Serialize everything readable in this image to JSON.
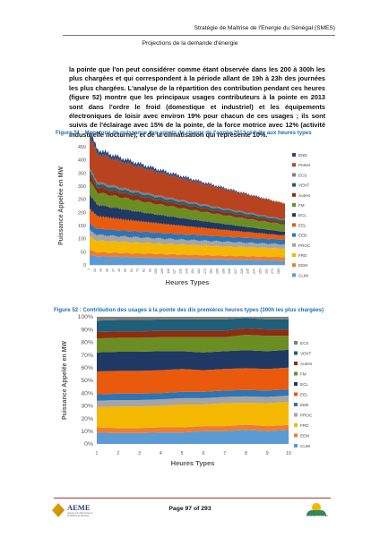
{
  "header": {
    "title": "Stratégie de Maîtrise de l'Energie du Sénégal (SMES)",
    "subtitle": "Projections de la demande d'énergie"
  },
  "paragraph": "la pointe que l'on peut considérer comme étant observée dans les 200 à 300h les plus chargées et qui correspondent à la période allant de 19h à 23h des journées les plus chargées. L'analyse de la répartition des contribution pendant ces heures (figure 52) montre que les principaux usages contributeurs à la pointe en 2013 sont dans l'ordre le froid (domestique et industriel) et les équipements électroniques de loisir avec environ 19% pour chacun de ces usages ; ils sont suivis de l'éclairage avec 15% de la pointe, de la force motrice avec 12% (activité industrielle nocturne), et de la climatisation qui représente 10%.",
  "figures": {
    "fig51_caption": "Figure 51 : Monotone de puissance des appels de charge de l'année 2013 réduite aux heures types",
    "fig52_caption": "Figure 52 : Contribution des usages à la pointe des dix premières heures types (300h les plus chargées)"
  },
  "colors": {
    "END": "#244a83",
    "Pertes": "#b8431f",
    "ECS": "#7f7f7f",
    "VENT": "#1f5f7a",
    "Autres": "#8e2d10",
    "FM": "#6b8e23",
    "ECL": "#1f3864",
    "EEL": "#ea5a0c",
    "EEB": "#2e75b6",
    "PROC": "#a5a5a5",
    "FRD": "#f5b800",
    "EEM": "#ed7d31",
    "CLIM": "#5b9bd5"
  },
  "chart_data": [
    {
      "type": "area",
      "stacked": true,
      "xlabel": "Heures Types",
      "ylabel": "Puissance Appelée en MW",
      "ylim": [
        0,
        450
      ],
      "yticks": [
        0,
        50,
        100,
        150,
        200,
        250,
        300,
        350,
        400,
        450
      ],
      "x_tick_step": 9,
      "x_start": 1,
      "x_end": 288,
      "legend": [
        "END",
        "Pertes",
        "ECS",
        "VENT",
        "Autres",
        "FM",
        "ECL",
        "EEL",
        "EEB",
        "PROC",
        "FRD",
        "EEM",
        "CLIM"
      ],
      "legend_position": "right",
      "grid": false,
      "series": [
        {
          "name": "CLIM",
          "start": 34,
          "end": 16
        },
        {
          "name": "EEM",
          "start": 16,
          "end": 14
        },
        {
          "name": "FRD",
          "start": 45,
          "end": 32
        },
        {
          "name": "PROC",
          "start": 22,
          "end": 16
        },
        {
          "name": "EEB",
          "start": 24,
          "end": 18
        },
        {
          "name": "EEL",
          "start": 50,
          "end": 16
        },
        {
          "name": "ECL",
          "start": 46,
          "end": 14
        },
        {
          "name": "FM",
          "start": 48,
          "end": 28
        },
        {
          "name": "Autres",
          "start": 22,
          "end": 8
        },
        {
          "name": "VENT",
          "start": 12,
          "end": 8
        },
        {
          "name": "ECS",
          "start": 8,
          "end": 4
        },
        {
          "name": "Pertes",
          "start": 110,
          "end": 60
        },
        {
          "name": "END",
          "start": 18,
          "end": 0
        }
      ]
    },
    {
      "type": "area",
      "stacked": true,
      "percent": true,
      "xlabel": "Heures Types",
      "ylabel": "Puissance Appelée en MW",
      "ylim": [
        0,
        100
      ],
      "yticks": [
        "0%",
        "10%",
        "20%",
        "30%",
        "40%",
        "50%",
        "60%",
        "70%",
        "80%",
        "90%",
        "100%"
      ],
      "categories": [
        "1",
        "2",
        "3",
        "4",
        "5",
        "6",
        "7",
        "8",
        "9",
        "10"
      ],
      "legend": [
        "ECS",
        "VENT",
        "Autres",
        "FM",
        "ECL",
        "EEL",
        "EEB",
        "PROC",
        "FRD",
        "EEM",
        "CLIM"
      ],
      "legend_position": "right",
      "series": [
        {
          "name": "CLIM",
          "values": [
            9,
            8.5,
            8.5,
            9,
            9,
            10,
            10,
            11,
            10,
            11
          ]
        },
        {
          "name": "EEM",
          "values": [
            4,
            4,
            4,
            4,
            4,
            4,
            4,
            4,
            4,
            4
          ]
        },
        {
          "name": "FRD",
          "values": [
            16,
            17,
            17,
            17,
            18,
            17,
            18,
            17,
            18,
            18
          ]
        },
        {
          "name": "PROC",
          "values": [
            5,
            5,
            5,
            5,
            5,
            5,
            5,
            5,
            5,
            5
          ]
        },
        {
          "name": "EEB",
          "values": [
            5,
            5,
            5,
            5,
            5,
            5,
            5,
            5,
            5,
            5
          ]
        },
        {
          "name": "EEL",
          "values": [
            18,
            18,
            18,
            18,
            18,
            17,
            17,
            17,
            17,
            17
          ]
        },
        {
          "name": "ECL",
          "values": [
            15,
            15,
            15,
            15,
            14,
            14,
            14,
            14,
            14,
            14
          ]
        },
        {
          "name": "FM",
          "values": [
            11,
            11,
            11,
            11,
            11,
            12,
            11,
            12,
            12,
            11
          ]
        },
        {
          "name": "Autres",
          "values": [
            5,
            5,
            5,
            5,
            5,
            5,
            5,
            5,
            5,
            5
          ]
        },
        {
          "name": "VENT",
          "values": [
            9,
            9,
            9,
            9,
            9,
            9,
            9,
            8,
            8,
            8
          ]
        },
        {
          "name": "ECS",
          "values": [
            3,
            2.5,
            2.5,
            2,
            2,
            2,
            2,
            1,
            2,
            2
          ]
        }
      ]
    }
  ],
  "footer": {
    "page": "Page 97 of 293",
    "left_logo_text": "AEME",
    "left_logo_tagline": "Agence pour l'Economie et la Maîtrise de l'Energie",
    "right_logo_text": "République du Sénégal"
  }
}
